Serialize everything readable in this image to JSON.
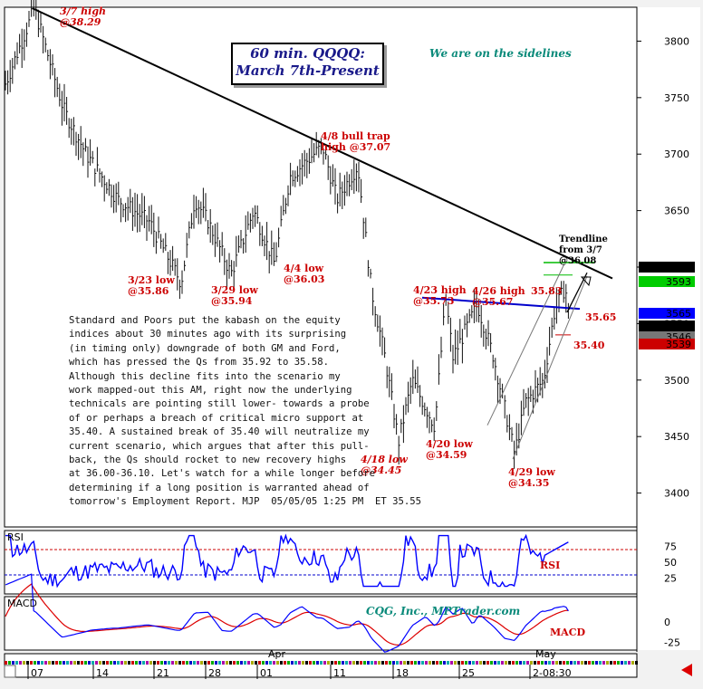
{
  "chart_title": [
    "60 min. QQQQ:",
    "March 7th-Present"
  ],
  "status_note": "We are on the sidelines",
  "credit": "CQG, Inc., MPTrader.com",
  "commentary": [
    "Standard and Poors put the kabash on the equity",
    "indices about 30 minutes ago with its surprising",
    "(in timing only) downgrade of both GM and Ford,",
    "which has pressed the Qs from 35.92 to 35.58.",
    "Although this decline fits into the scenario my",
    "work mapped-out this AM, right now the underlying",
    "technicals are pointing still lower- towards a probe",
    "of or perhaps a breach of critical micro support at",
    "35.40. A sustained break of 35.40 will neutralize my",
    "current scenario, which argues that after this pull-",
    "back, the Qs should rocket to new recovery highs",
    "at 36.00-36.10. Let's watch for a while longer before",
    "determining if a long position is warranted ahead of",
    "tomorrow's Employment Report. MJP  05/05/05 1:25 PM  ET 35.55"
  ],
  "annotations": [
    {
      "id": "mar7-high",
      "lines": [
        "3/7 high",
        "@38.29"
      ],
      "italic": true
    },
    {
      "id": "bull-trap",
      "lines": [
        "4/8 bull trap",
        "high @37.07"
      ]
    },
    {
      "id": "mar23-low",
      "lines": [
        "3/23 low",
        "@35.86"
      ]
    },
    {
      "id": "mar29-low",
      "lines": [
        "3/29 low",
        "@35.94"
      ]
    },
    {
      "id": "apr4-low",
      "lines": [
        "4/4 low",
        "@36.03"
      ]
    },
    {
      "id": "apr18-low",
      "lines": [
        "4/18 low",
        "@34.45"
      ],
      "italic": true
    },
    {
      "id": "apr20-low",
      "lines": [
        "4/20 low",
        "@34.59"
      ]
    },
    {
      "id": "apr23-high",
      "lines": [
        "4/23 high",
        "@35.73"
      ]
    },
    {
      "id": "apr26-high",
      "lines": [
        "4/26 high",
        "@35.67"
      ]
    },
    {
      "id": "apr29-low",
      "lines": [
        "4/29 low",
        "@34.35"
      ]
    },
    {
      "id": "recent-high",
      "lines": [
        "35.83"
      ]
    },
    {
      "id": "trendline",
      "lines": [
        "Trendline",
        "from 3/7",
        "@36.08"
      ],
      "black": true
    },
    {
      "id": "level-3565",
      "lines": [
        "35.65"
      ],
      "blue": true
    },
    {
      "id": "level-3540",
      "lines": [
        "35.40"
      ]
    }
  ],
  "price_tags": [
    {
      "label": "3606",
      "bg": "#000000",
      "fg": "#ffffff"
    },
    {
      "label": "3593",
      "bg": "#00cc00",
      "fg": "#000000"
    },
    {
      "label": "3565",
      "bg": "#0000ff",
      "fg": "#ffffff"
    },
    {
      "label": "3554",
      "bg": "#000000",
      "fg": "#ffffff"
    },
    {
      "label": "3546",
      "bg": "#777777",
      "fg": "#ffffff"
    },
    {
      "label": "3539",
      "bg": "#cc0000",
      "fg": "#ffffff"
    }
  ],
  "indicator_labels": {
    "rsi_panel": "RSI",
    "rsi_tag": "RSI",
    "macd_panel": "MACD",
    "macd_tag": "MACD"
  },
  "colors": {
    "trendline": "#000000",
    "support_line": "#0000cc",
    "channel": "#777777",
    "bars": "#111111",
    "rsi": "#0000ff",
    "macd": "#0000ff",
    "signal": "#dd0000"
  },
  "chart_data": {
    "type": "bar",
    "ylim": [
      3370,
      3830
    ],
    "yticks": [
      3400,
      3450,
      3500,
      3550,
      3600,
      3650,
      3700,
      3750,
      3800
    ],
    "month_labels": [
      "Apr",
      "May"
    ],
    "x_tick_labels": [
      "07",
      "14",
      "21",
      "28",
      "01",
      "11",
      "18",
      "25",
      "2-08:30"
    ],
    "key_points": [
      {
        "x": "3/7",
        "y": 3829
      },
      {
        "x": "3/23",
        "y": 3586
      },
      {
        "x": "3/29",
        "y": 3594
      },
      {
        "x": "4/4",
        "y": 3603
      },
      {
        "x": "4/8",
        "y": 3707
      },
      {
        "x": "4/18",
        "y": 3445
      },
      {
        "x": "4/20",
        "y": 3459
      },
      {
        "x": "4/23",
        "y": 3573
      },
      {
        "x": "4/26",
        "y": 3567
      },
      {
        "x": "4/29",
        "y": 3435
      },
      {
        "x": "5/5",
        "y": 3583
      },
      {
        "x": "5/5 last",
        "y": 3555
      }
    ],
    "levels": [
      {
        "name": "resistance",
        "value": 3565
      },
      {
        "name": "support",
        "value": 3540
      }
    ],
    "trendline_value": 3608,
    "rsi": {
      "ylim": [
        0,
        100
      ],
      "yticks": [
        25,
        50,
        75
      ],
      "guides": [
        30,
        70
      ]
    },
    "macd": {
      "yticks": [
        0,
        -25
      ]
    }
  }
}
